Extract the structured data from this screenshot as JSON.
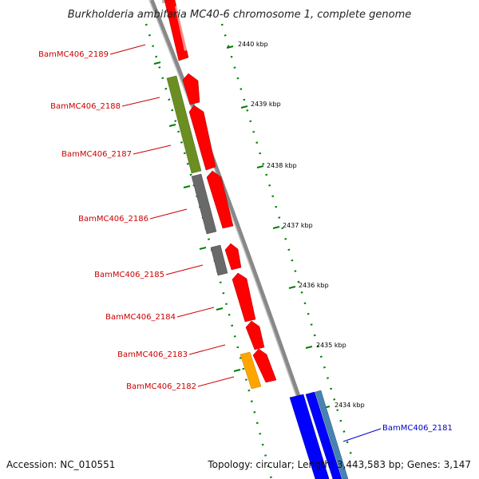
{
  "title": "Burkholderia ambifaria MC40-6 chromosome 1, complete genome",
  "footer": {
    "accession": "Accession: NC_010551",
    "summary": "Topology: circular; Length: 3,443,583 bp; Genes: 3,147"
  },
  "colors": {
    "backbone": "#808080",
    "forward_cds": "#ff0000",
    "reverse_blue": "#0000ff",
    "reverse_steel": "#4682b4",
    "olive": "#6b8e23",
    "grey": "#696969",
    "orange": "#ffa500",
    "tick": "#008000",
    "label_red": "#cc0000",
    "label_blue": "#0000cc"
  },
  "kbp_labels": [
    "2440 kbp",
    "2439 kbp",
    "2438 kbp",
    "2437 kbp",
    "2436 kbp",
    "2435 kbp",
    "2434 kbp"
  ],
  "gene_labels": [
    {
      "id": "BamMC406_2189",
      "color": "#cc0000"
    },
    {
      "id": "BamMC406_2188",
      "color": "#cc0000"
    },
    {
      "id": "BamMC406_2187",
      "color": "#cc0000"
    },
    {
      "id": "BamMC406_2186",
      "color": "#cc0000"
    },
    {
      "id": "BamMC406_2185",
      "color": "#cc0000"
    },
    {
      "id": "BamMC406_2184",
      "color": "#cc0000"
    },
    {
      "id": "BamMC406_2183",
      "color": "#cc0000"
    },
    {
      "id": "BamMC406_2182",
      "color": "#cc0000"
    },
    {
      "id": "BamMC406_2181",
      "color": "#0000cc"
    }
  ]
}
